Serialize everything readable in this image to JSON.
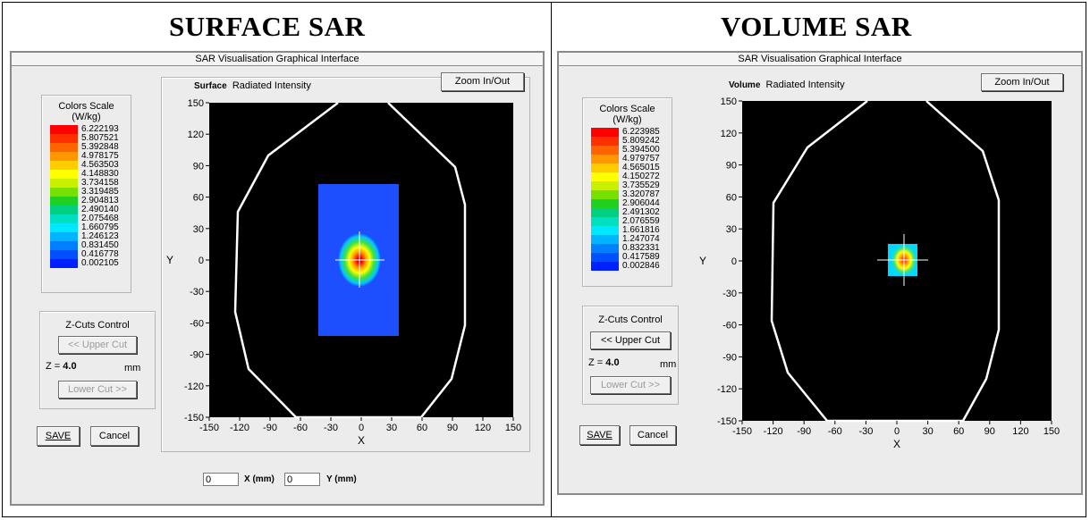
{
  "surface": {
    "panel_title": "SURFACE SAR",
    "window_title": "SAR Visualisation Graphical Interface",
    "plot_title_bold": "Surface",
    "plot_title": "Radiated Intensity",
    "zoom_label": "Zoom In/Out",
    "scale_title_1": "Colors Scale",
    "scale_title_2": "(W/kg)",
    "scale_values": [
      "6.222193",
      "5.807521",
      "5.392848",
      "4.978175",
      "4.563503",
      "4.148830",
      "3.734158",
      "3.319485",
      "2.904813",
      "2.490140",
      "2.075468",
      "1.660795",
      "1.246123",
      "0.831450",
      "0.416778",
      "0.002105"
    ],
    "zcuts_title": "Z-Cuts Control",
    "upper_cut_label": "<< Upper Cut",
    "upper_cut_enabled": false,
    "z_label": "Z =",
    "z_value": "4.0",
    "z_unit": "mm",
    "lower_cut_label": "Lower Cut >>",
    "lower_cut_enabled": false,
    "save_label": "SAVE",
    "cancel_label": "Cancel",
    "x_input_value": "0",
    "x_input_label": "X (mm)",
    "y_input_value": "0",
    "y_input_label": "Y (mm)"
  },
  "volume": {
    "panel_title": "VOLUME SAR",
    "window_title": "SAR Visualisation Graphical Interface",
    "plot_title_bold": "Volume",
    "plot_title": "Radiated Intensity",
    "zoom_label": "Zoom In/Out",
    "scale_title_1": "Colors Scale",
    "scale_title_2": "(W/kg)",
    "scale_values": [
      "6.223985",
      "5.809242",
      "5.394500",
      "4.979757",
      "4.565015",
      "4.150272",
      "3.735529",
      "3.320787",
      "2.906044",
      "2.491302",
      "2.076559",
      "1.661816",
      "1.247074",
      "0.832331",
      "0.417589",
      "0.002846"
    ],
    "zcuts_title": "Z-Cuts Control",
    "upper_cut_label": "<< Upper Cut",
    "upper_cut_enabled": true,
    "z_label": "Z =",
    "z_value": "4.0",
    "z_unit": "mm",
    "lower_cut_label": "Lower Cut >>",
    "lower_cut_enabled": false,
    "save_label": "SAVE",
    "cancel_label": "Cancel"
  },
  "axes": {
    "x_label": "X",
    "y_label": "Y",
    "x_ticks": [
      "-150",
      "-120",
      "-90",
      "-60",
      "-30",
      "0",
      "30",
      "60",
      "90",
      "120",
      "150"
    ],
    "y_ticks": [
      "150",
      "120",
      "90",
      "60",
      "30",
      "0",
      "-30",
      "-60",
      "-90",
      "-120",
      "-150"
    ]
  },
  "colors": {
    "scale": [
      "#ff0000",
      "#ff3000",
      "#ff6400",
      "#ff9800",
      "#ffcc00",
      "#ffff00",
      "#c8f000",
      "#78e000",
      "#20d020",
      "#00d080",
      "#00e0c0",
      "#00e8ff",
      "#00b4ff",
      "#0080ff",
      "#0050ff",
      "#0020ff"
    ],
    "plot_background": "#000000",
    "field_rect": "#1d4fff"
  }
}
